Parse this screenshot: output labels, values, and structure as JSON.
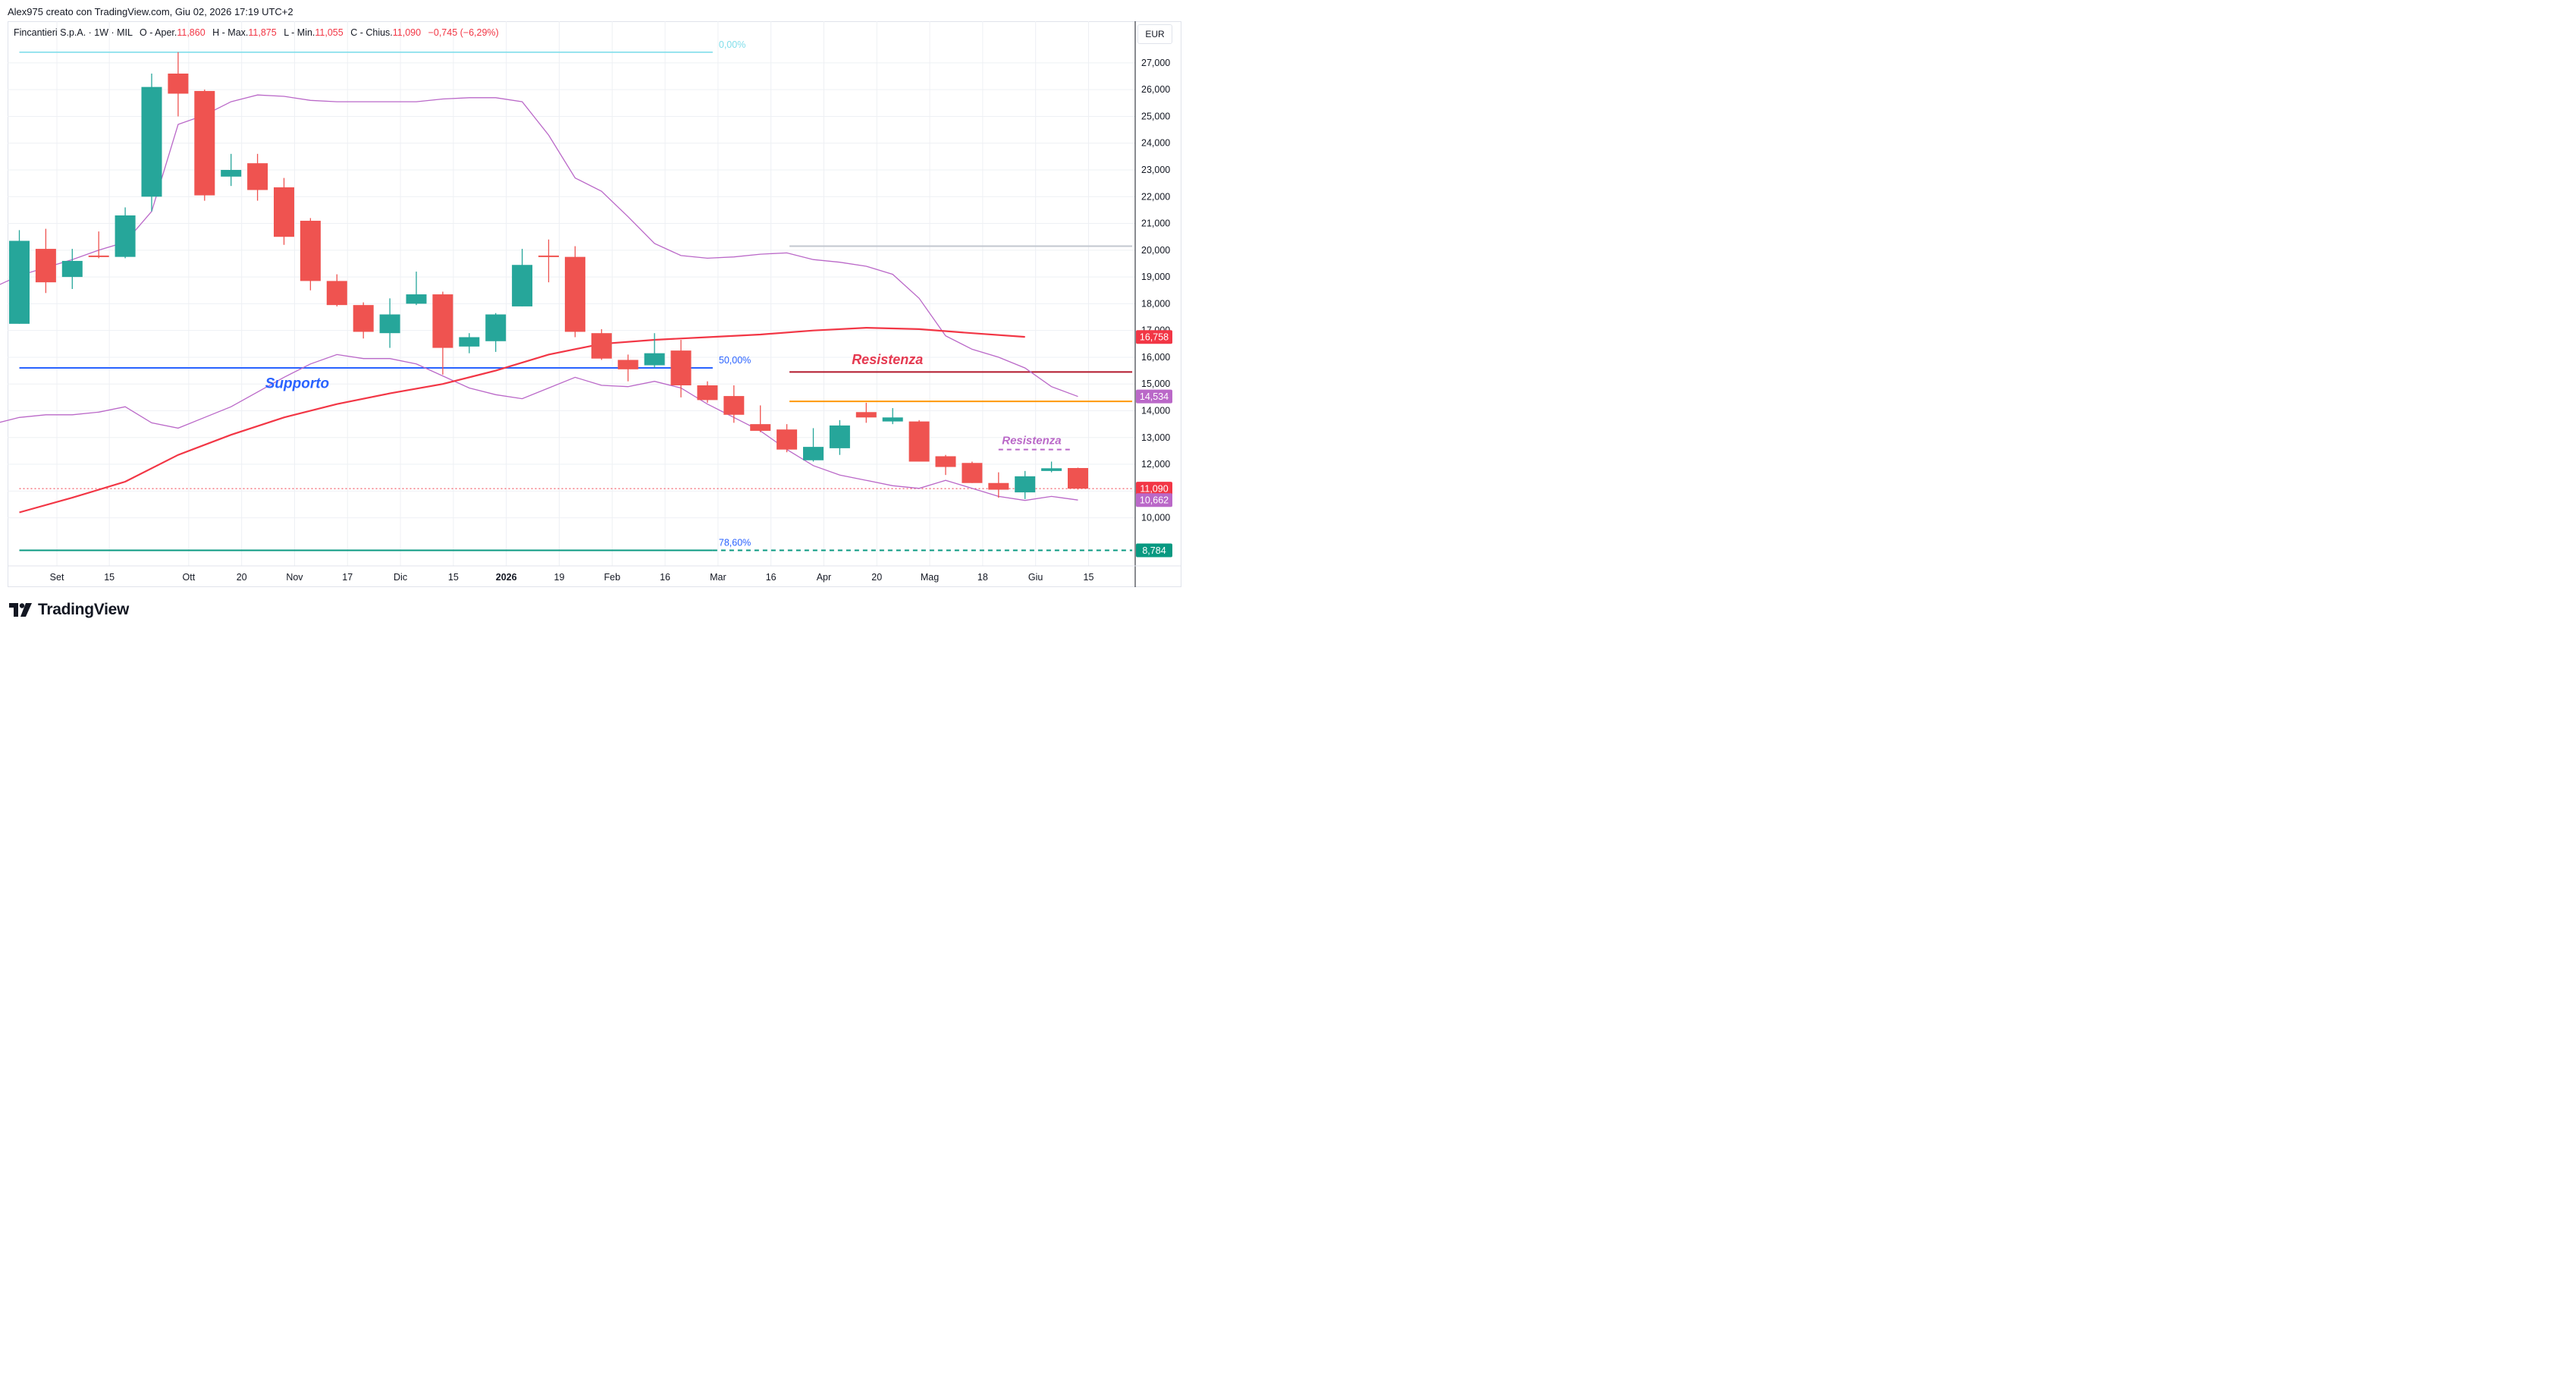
{
  "header": {
    "credit": "Alex975 creato con TradingView.com, Giu 02, 2026 17:19 UTC+2"
  },
  "legend": {
    "symbol": "Fincantieri S.p.A. · 1W · MIL",
    "open_label": "O - Aper.",
    "open": "11,860",
    "high_label": "H - Max.",
    "high": "11,875",
    "low_label": "L - Min.",
    "low": "11,055",
    "close_label": "C - Chius.",
    "close": "11,090",
    "change": "−0,745 (−6,29%)"
  },
  "currency": "EUR",
  "brand": {
    "name": "TradingView"
  },
  "colors": {
    "up": "#26a69a",
    "down": "#ef5350",
    "ma": "#f23645",
    "bands": "#ba68c8",
    "support": "#2962ff",
    "resistance": "#b2182b",
    "orange": "#ff9800",
    "grid": "#eef0f4"
  },
  "chart_data": {
    "type": "candlestick",
    "instrument": "Fincantieri S.p.A.",
    "timeframe": "1W",
    "ylim": [
      8.2,
      28.0
    ],
    "y_ticks": [
      10,
      11,
      12,
      13,
      14,
      15,
      16,
      17,
      18,
      19,
      20,
      21,
      22,
      23,
      24,
      25,
      26,
      27
    ],
    "y_tick_labels": [
      "10,000",
      "11,000",
      "12,000",
      "13,000",
      "14,000",
      "15,000",
      "16,000",
      "17,000",
      "18,000",
      "19,000",
      "20,000",
      "21,000",
      "22,000",
      "23,000",
      "24,000",
      "25,000",
      "26,000",
      "27,000"
    ],
    "x_tick_labels": [
      {
        "label": "Set",
        "i": 1.42
      },
      {
        "label": "15",
        "i": 3.4
      },
      {
        "label": "Ott",
        "i": 6.4
      },
      {
        "label": "20",
        "i": 8.4
      },
      {
        "label": "Nov",
        "i": 10.4
      },
      {
        "label": "17",
        "i": 12.4
      },
      {
        "label": "Dic",
        "i": 14.4
      },
      {
        "label": "15",
        "i": 16.4
      },
      {
        "label": "2026",
        "i": 18.4,
        "bold": true
      },
      {
        "label": "19",
        "i": 20.4
      },
      {
        "label": "Feb",
        "i": 22.4
      },
      {
        "label": "16",
        "i": 24.4
      },
      {
        "label": "Mar",
        "i": 26.4
      },
      {
        "label": "16",
        "i": 28.4
      },
      {
        "label": "Apr",
        "i": 30.4
      },
      {
        "label": "20",
        "i": 32.4
      },
      {
        "label": "Mag",
        "i": 34.4
      },
      {
        "label": "18",
        "i": 36.4
      },
      {
        "label": "Giu",
        "i": 38.4
      },
      {
        "label": "15",
        "i": 40.4
      }
    ],
    "candles": [
      {
        "o": 17.25,
        "h": 20.75,
        "l": 17.25,
        "c": 20.35
      },
      {
        "o": 20.05,
        "h": 20.8,
        "l": 18.4,
        "c": 18.8
      },
      {
        "o": 19.0,
        "h": 20.05,
        "l": 18.55,
        "c": 19.6
      },
      {
        "o": 19.8,
        "h": 20.7,
        "l": 19.7,
        "c": 19.75
      },
      {
        "o": 19.75,
        "h": 21.6,
        "l": 19.7,
        "c": 21.3
      },
      {
        "o": 22.0,
        "h": 26.6,
        "l": 21.45,
        "c": 26.1
      },
      {
        "o": 26.6,
        "h": 27.4,
        "l": 25.0,
        "c": 25.85
      },
      {
        "o": 25.95,
        "h": 26.0,
        "l": 21.85,
        "c": 22.05
      },
      {
        "o": 22.75,
        "h": 23.6,
        "l": 22.4,
        "c": 23.0
      },
      {
        "o": 23.25,
        "h": 23.6,
        "l": 21.85,
        "c": 22.25
      },
      {
        "o": 22.35,
        "h": 22.7,
        "l": 20.2,
        "c": 20.5
      },
      {
        "o": 21.1,
        "h": 21.2,
        "l": 18.5,
        "c": 18.85
      },
      {
        "o": 18.85,
        "h": 19.1,
        "l": 17.9,
        "c": 17.95
      },
      {
        "o": 17.95,
        "h": 18.05,
        "l": 16.7,
        "c": 16.95
      },
      {
        "o": 16.9,
        "h": 18.2,
        "l": 16.35,
        "c": 17.6
      },
      {
        "o": 18.0,
        "h": 19.2,
        "l": 17.95,
        "c": 18.35
      },
      {
        "o": 18.35,
        "h": 18.45,
        "l": 15.35,
        "c": 16.35
      },
      {
        "o": 16.4,
        "h": 16.9,
        "l": 16.15,
        "c": 16.75
      },
      {
        "o": 16.6,
        "h": 17.65,
        "l": 16.2,
        "c": 17.6
      },
      {
        "o": 17.9,
        "h": 20.05,
        "l": 17.9,
        "c": 19.45
      },
      {
        "o": 19.8,
        "h": 20.4,
        "l": 18.8,
        "c": 19.75
      },
      {
        "o": 19.75,
        "h": 20.15,
        "l": 16.75,
        "c": 16.95
      },
      {
        "o": 16.9,
        "h": 17.05,
        "l": 15.9,
        "c": 15.95
      },
      {
        "o": 15.9,
        "h": 16.1,
        "l": 15.1,
        "c": 15.55
      },
      {
        "o": 15.7,
        "h": 16.9,
        "l": 15.6,
        "c": 16.15
      },
      {
        "o": 16.25,
        "h": 16.65,
        "l": 14.5,
        "c": 14.95
      },
      {
        "o": 14.95,
        "h": 15.1,
        "l": 14.3,
        "c": 14.4
      },
      {
        "o": 14.55,
        "h": 14.95,
        "l": 13.55,
        "c": 13.85
      },
      {
        "o": 13.5,
        "h": 14.2,
        "l": 13.2,
        "c": 13.25
      },
      {
        "o": 13.3,
        "h": 13.5,
        "l": 12.45,
        "c": 12.55
      },
      {
        "o": 12.15,
        "h": 13.35,
        "l": 12.1,
        "c": 12.65
      },
      {
        "o": 12.6,
        "h": 13.65,
        "l": 12.35,
        "c": 13.45
      },
      {
        "o": 13.95,
        "h": 14.3,
        "l": 13.55,
        "c": 13.75
      },
      {
        "o": 13.6,
        "h": 14.1,
        "l": 13.5,
        "c": 13.75
      },
      {
        "o": 13.6,
        "h": 13.65,
        "l": 12.1,
        "c": 12.1
      },
      {
        "o": 12.3,
        "h": 12.35,
        "l": 11.6,
        "c": 11.9
      },
      {
        "o": 12.05,
        "h": 12.1,
        "l": 11.3,
        "c": 11.3
      },
      {
        "o": 11.3,
        "h": 11.7,
        "l": 10.75,
        "c": 11.05
      },
      {
        "o": 10.95,
        "h": 11.75,
        "l": 10.7,
        "c": 11.55
      },
      {
        "o": 11.75,
        "h": 12.1,
        "l": 11.7,
        "c": 11.85
      },
      {
        "o": 11.86,
        "h": 11.875,
        "l": 11.055,
        "c": 11.09
      }
    ],
    "moving_average": [
      [
        0,
        10.2
      ],
      [
        2,
        10.75
      ],
      [
        4,
        11.35
      ],
      [
        6,
        12.35
      ],
      [
        8,
        13.1
      ],
      [
        10,
        13.75
      ],
      [
        12,
        14.25
      ],
      [
        14,
        14.65
      ],
      [
        16,
        15.0
      ],
      [
        18,
        15.5
      ],
      [
        20,
        16.1
      ],
      [
        22,
        16.5
      ],
      [
        24,
        16.65
      ],
      [
        26,
        16.75
      ],
      [
        28,
        16.85
      ],
      [
        30,
        17.0
      ],
      [
        32,
        17.1
      ],
      [
        34,
        17.05
      ],
      [
        36,
        16.9
      ],
      [
        38,
        16.76
      ]
    ],
    "band_upper": [
      [
        -1,
        18.6
      ],
      [
        0,
        19.05
      ],
      [
        1,
        19.35
      ],
      [
        2,
        19.65
      ],
      [
        3,
        20.0
      ],
      [
        4,
        20.3
      ],
      [
        5,
        21.45
      ],
      [
        6,
        24.7
      ],
      [
        7,
        25.05
      ],
      [
        8,
        25.55
      ],
      [
        9,
        25.8
      ],
      [
        10,
        25.75
      ],
      [
        11,
        25.6
      ],
      [
        12,
        25.55
      ],
      [
        13,
        25.55
      ],
      [
        14,
        25.55
      ],
      [
        15,
        25.55
      ],
      [
        16,
        25.65
      ],
      [
        17,
        25.7
      ],
      [
        18,
        25.7
      ],
      [
        19,
        25.55
      ],
      [
        20,
        24.3
      ],
      [
        21,
        22.7
      ],
      [
        22,
        22.2
      ],
      [
        23,
        21.25
      ],
      [
        24,
        20.25
      ],
      [
        25,
        19.8
      ],
      [
        26,
        19.7
      ],
      [
        27,
        19.75
      ],
      [
        28,
        19.85
      ],
      [
        29,
        19.9
      ],
      [
        30,
        19.65
      ],
      [
        31,
        19.55
      ],
      [
        32,
        19.4
      ],
      [
        33,
        19.1
      ],
      [
        34,
        18.2
      ],
      [
        35,
        16.8
      ],
      [
        36,
        16.3
      ],
      [
        37,
        16.0
      ],
      [
        38,
        15.6
      ],
      [
        39,
        14.9
      ],
      [
        40,
        14.534
      ]
    ],
    "band_lower": [
      [
        -1,
        13.5
      ],
      [
        0,
        13.75
      ],
      [
        1,
        13.85
      ],
      [
        2,
        13.85
      ],
      [
        3,
        13.95
      ],
      [
        4,
        14.15
      ],
      [
        5,
        13.55
      ],
      [
        6,
        13.35
      ],
      [
        7,
        13.75
      ],
      [
        8,
        14.15
      ],
      [
        9,
        14.7
      ],
      [
        10,
        15.25
      ],
      [
        11,
        15.75
      ],
      [
        12,
        16.1
      ],
      [
        13,
        15.95
      ],
      [
        14,
        15.95
      ],
      [
        15,
        15.75
      ],
      [
        16,
        15.3
      ],
      [
        17,
        14.85
      ],
      [
        18,
        14.6
      ],
      [
        19,
        14.45
      ],
      [
        20,
        14.85
      ],
      [
        21,
        15.25
      ],
      [
        22,
        14.95
      ],
      [
        23,
        14.9
      ],
      [
        24,
        15.1
      ],
      [
        25,
        14.85
      ],
      [
        26,
        14.25
      ],
      [
        27,
        13.75
      ],
      [
        28,
        13.25
      ],
      [
        29,
        12.55
      ],
      [
        30,
        11.95
      ],
      [
        31,
        11.6
      ],
      [
        32,
        11.4
      ],
      [
        33,
        11.2
      ],
      [
        34,
        11.1
      ],
      [
        35,
        11.4
      ],
      [
        36,
        11.1
      ],
      [
        37,
        10.8
      ],
      [
        38,
        10.65
      ],
      [
        39,
        10.8
      ],
      [
        40,
        10.662
      ]
    ],
    "levels": [
      {
        "name": "fib-0",
        "y": 27.4,
        "from": 0,
        "to": 26.2,
        "color": "#80deea",
        "label": "0,00%",
        "label_color": "#80deea"
      },
      {
        "name": "supporto",
        "y": 15.6,
        "from": 0,
        "to": 26.2,
        "color": "#2962ff",
        "label": "50,00%",
        "label_color": "#2962ff"
      },
      {
        "name": "fib-786",
        "y": 8.784,
        "from": 0,
        "to": 26.2,
        "color": "#089981",
        "label": "78,60%",
        "label_color": "#2962ff"
      },
      {
        "name": "fib-786-ext",
        "y": 8.784,
        "from": 26.2,
        "to": 42.05,
        "color": "#089981",
        "dashed": true
      },
      {
        "name": "resistenza-grey",
        "y": 20.15,
        "from": 29.1,
        "to": 42.05,
        "color": "#c2c7cf"
      },
      {
        "name": "resistenza-red",
        "y": 15.45,
        "from": 29.1,
        "to": 42.05,
        "color": "#b2182b"
      },
      {
        "name": "resistenza-orange",
        "y": 14.35,
        "from": 29.1,
        "to": 42.05,
        "color": "#ff9800"
      },
      {
        "name": "resistenza-dashed",
        "y": 12.55,
        "from": 37.0,
        "to": 39.8,
        "color": "#ba68c8",
        "dashed": true
      },
      {
        "name": "last-close",
        "y": 11.09,
        "from": 0,
        "to": 42.05,
        "color": "#f23645",
        "dotted": true
      }
    ],
    "annotations": [
      {
        "text": "Supporto",
        "i": 10.5,
        "y": 14.85,
        "color": "#2962ff",
        "size": 19
      },
      {
        "text": "Resistenza",
        "i": 32.8,
        "y": 15.75,
        "color": "#e53950",
        "size": 18
      },
      {
        "text": "Resistenza",
        "i": 38.25,
        "y": 12.75,
        "color": "#ba68c8",
        "size": 15
      }
    ],
    "price_tags": [
      {
        "value": "16,758",
        "y": 16.758,
        "color": "#f23645"
      },
      {
        "value": "14,534",
        "y": 14.534,
        "color": "#ba68c8"
      },
      {
        "value": "11,090",
        "y": 11.09,
        "color": "#f23645"
      },
      {
        "value": "10,662",
        "y": 10.662,
        "color": "#ba68c8"
      },
      {
        "value": "8,784",
        "y": 8.784,
        "color": "#089981"
      }
    ]
  }
}
